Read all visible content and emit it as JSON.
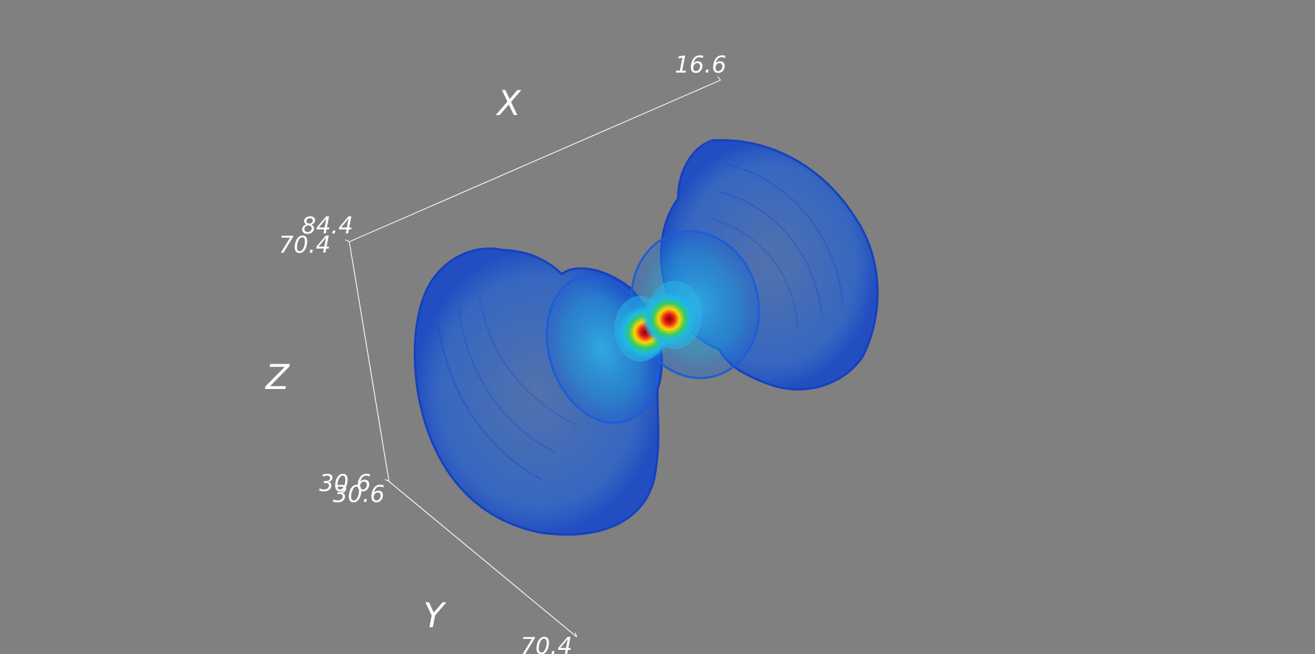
{
  "viewer": {
    "background_color": "#808080",
    "axis_color": "#ffffff",
    "isosurface_color": "#1f5fd8"
  },
  "axes": {
    "x": {
      "title": "X",
      "tick_end": "16.6"
    },
    "y": {
      "title": "Y",
      "tick_start": "30.6",
      "tick_end": "70.4"
    },
    "z": {
      "title": "Z",
      "tick_top": "84.4",
      "tick_top_alt": "70.4",
      "tick_bottom": "30.6"
    }
  }
}
